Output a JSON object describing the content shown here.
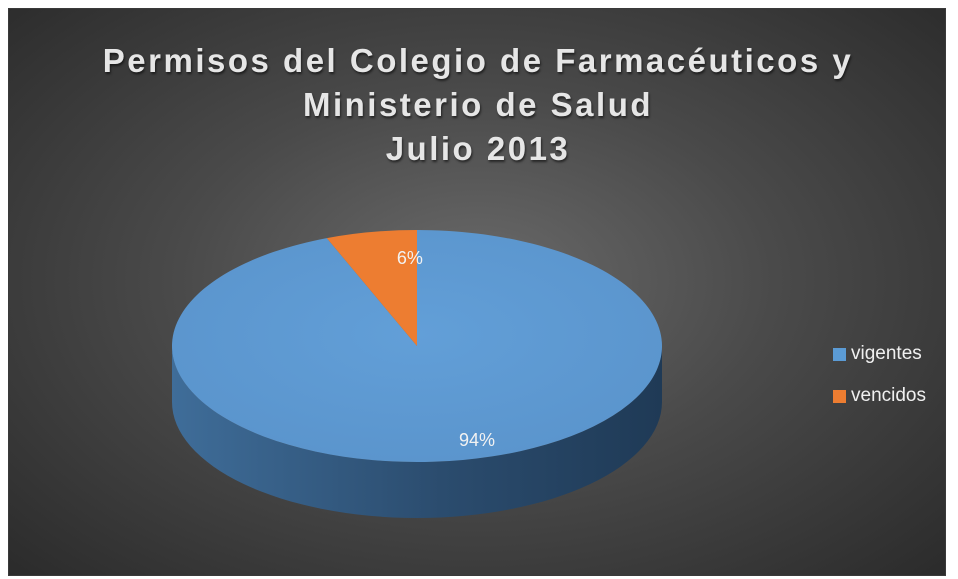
{
  "chart_data": {
    "type": "pie",
    "title_lines": [
      "Permisos del Colegio de Farmacéuticos y",
      "Ministerio de Salud",
      "Julio 2013"
    ],
    "categories": [
      "vigentes",
      "vencidos"
    ],
    "values": [
      94,
      6
    ],
    "data_labels": [
      "94%",
      "6%"
    ],
    "colors": [
      "#5b9bd5",
      "#ed7d31"
    ],
    "legend_position": "right",
    "style": "3d"
  }
}
